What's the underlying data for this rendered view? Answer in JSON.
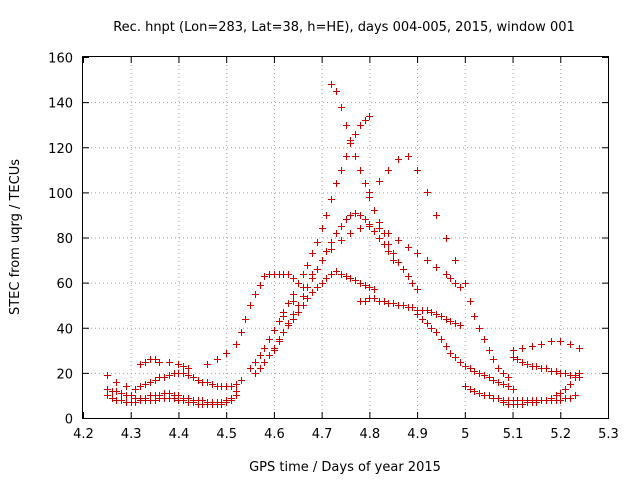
{
  "chart_data": {
    "type": "scatter",
    "title": "Rec. hnpt (Lon=283, Lat=38, h=HE), days 004-005, 2015, window 001",
    "xlabel": "GPS time / Days of year 2015",
    "ylabel": "STEC from uqrg / TECUs",
    "xlim": [
      4.2,
      5.3
    ],
    "ylim": [
      0,
      160
    ],
    "x_ticks": [
      "4.2",
      "4.3",
      "4.4",
      "4.5",
      "4.6",
      "4.7",
      "4.8",
      "4.9",
      "5",
      "5.1",
      "5.2",
      "5.3"
    ],
    "y_ticks": [
      "0",
      "20",
      "40",
      "60",
      "80",
      "100",
      "120",
      "140",
      "160"
    ],
    "grid": true,
    "marker": "plus",
    "color": "#cc0000",
    "series": [
      {
        "x": [
          4.25,
          4.26,
          4.27,
          4.28,
          4.29,
          4.3,
          4.31,
          4.32,
          4.33,
          4.34,
          4.35,
          4.36,
          4.37,
          4.38,
          4.39,
          4.4,
          4.41,
          4.42,
          4.43,
          4.44,
          4.45,
          4.46,
          4.47,
          4.48,
          4.49,
          4.5,
          4.51,
          4.52,
          4.25,
          4.26,
          4.27,
          4.28,
          4.29,
          4.3,
          4.31,
          4.32,
          4.33,
          4.34,
          4.35,
          4.36,
          4.37,
          4.38,
          4.39,
          4.4,
          4.41,
          4.42,
          4.43,
          4.44,
          4.45,
          4.46,
          4.47,
          4.48,
          4.49,
          4.5,
          4.51,
          4.52,
          4.25,
          4.27,
          4.29,
          4.31,
          4.32,
          4.33,
          4.34,
          4.35,
          4.36,
          4.37,
          4.38,
          4.39,
          4.4,
          4.41,
          4.42,
          4.43,
          4.44,
          4.45,
          4.46,
          4.47,
          4.48,
          4.49,
          4.5,
          4.51,
          4.52,
          4.53,
          4.32,
          4.33,
          4.34,
          4.35,
          4.36,
          4.38,
          4.4,
          4.41,
          4.42,
          4.46,
          4.48,
          4.5,
          4.52,
          4.53,
          4.54,
          4.55,
          4.56,
          4.57,
          4.58,
          4.59,
          4.6,
          4.61,
          4.62,
          4.63,
          4.64,
          4.65,
          4.55,
          4.56,
          4.57,
          4.58,
          4.59,
          4.6,
          4.61,
          4.62,
          4.63,
          4.64,
          4.65,
          4.66,
          4.67,
          4.68,
          4.69,
          4.7,
          4.71,
          4.72,
          4.73,
          4.74,
          4.75,
          4.76,
          4.77,
          4.78,
          4.79,
          4.8,
          4.56,
          4.57,
          4.58,
          4.59,
          4.6,
          4.61,
          4.62,
          4.63,
          4.64,
          4.65,
          4.66,
          4.67,
          4.68,
          4.69,
          4.7,
          4.71,
          4.72,
          4.73,
          4.74,
          4.75,
          4.76,
          4.77,
          4.78,
          4.79,
          4.8,
          4.81,
          4.6,
          4.61,
          4.62,
          4.63,
          4.64,
          4.65,
          4.66,
          4.67,
          4.68,
          4.69,
          4.7,
          4.71,
          4.72,
          4.73,
          4.74,
          4.75,
          4.76,
          4.77,
          4.78,
          4.79,
          4.8,
          4.81,
          4.82,
          4.83,
          4.84,
          4.85,
          4.62,
          4.64,
          4.66,
          4.68,
          4.7,
          4.72,
          4.74,
          4.76,
          4.78,
          4.8,
          4.82,
          4.84,
          4.86,
          4.88,
          4.9,
          4.92,
          4.94,
          4.96,
          4.97,
          4.98,
          4.99,
          4.72,
          4.73,
          4.74,
          4.75,
          4.76,
          4.77,
          4.78,
          4.79,
          4.8,
          4.81,
          4.82,
          4.83,
          4.84,
          4.85,
          4.86,
          4.87,
          4.88,
          4.89,
          4.9,
          4.78,
          4.79,
          4.8,
          4.81,
          4.82,
          4.83,
          4.84,
          4.85,
          4.86,
          4.87,
          4.88,
          4.89,
          4.9,
          4.91,
          4.92,
          4.93,
          4.94,
          4.95,
          4.96,
          4.97,
          4.98,
          4.99,
          4.8,
          4.82,
          4.84,
          4.86,
          4.88,
          4.9,
          4.92,
          4.94,
          4.96,
          4.98,
          5.0,
          5.01,
          5.02,
          5.03,
          5.04,
          5.05,
          5.06,
          5.07,
          5.08,
          5.09,
          4.9,
          4.91,
          4.92,
          4.93,
          4.94,
          4.95,
          4.96,
          4.97,
          4.98,
          4.99,
          5.0,
          5.01,
          5.02,
          5.03,
          5.04,
          5.05,
          5.06,
          5.07,
          5.08,
          5.09,
          5.1,
          5.0,
          5.01,
          5.02,
          5.03,
          5.04,
          5.05,
          5.06,
          5.07,
          5.08,
          5.09,
          5.1,
          5.11,
          5.12,
          5.13,
          5.14,
          5.15,
          5.16,
          5.17,
          5.18,
          5.19,
          5.2,
          5.21,
          5.22,
          5.23,
          5.08,
          5.09,
          5.1,
          5.11,
          5.12,
          5.13,
          5.14,
          5.15,
          5.16,
          5.17,
          5.18,
          5.19,
          5.2,
          5.21,
          5.22,
          5.23,
          5.24,
          5.1,
          5.11,
          5.12,
          5.13,
          5.14,
          5.15,
          5.16,
          5.17,
          5.18,
          5.19,
          5.2,
          5.21,
          5.22,
          5.23,
          5.24,
          5.1,
          5.12,
          5.14,
          5.16,
          5.18,
          5.2,
          5.22,
          5.24
        ],
        "y": [
          10,
          9,
          8,
          8,
          7,
          7,
          7,
          8,
          8,
          8,
          8,
          9,
          9,
          9,
          9,
          8,
          8,
          7,
          7,
          6,
          6,
          6,
          6,
          6,
          6,
          7,
          8,
          10,
          13,
          12,
          12,
          11,
          10,
          10,
          9,
          9,
          9,
          10,
          10,
          10,
          11,
          11,
          10,
          10,
          9,
          9,
          8,
          8,
          8,
          7,
          7,
          7,
          7,
          8,
          9,
          12,
          19,
          16,
          14,
          13,
          14,
          15,
          16,
          17,
          18,
          18,
          19,
          20,
          20,
          20,
          19,
          18,
          17,
          16,
          16,
          15,
          14,
          14,
          14,
          14,
          15,
          17,
          24,
          25,
          26,
          26,
          25,
          25,
          24,
          23,
          22,
          24,
          26,
          29,
          33,
          38,
          44,
          50,
          55,
          59,
          63,
          64,
          64,
          64,
          64,
          64,
          62,
          60,
          22,
          25,
          28,
          31,
          35,
          39,
          43,
          47,
          51,
          55,
          60,
          64,
          68,
          73,
          78,
          84,
          90,
          97,
          104,
          110,
          116,
          122,
          126,
          130,
          132,
          134,
          20,
          22,
          25,
          28,
          31,
          35,
          38,
          41,
          44,
          47,
          50,
          53,
          56,
          58,
          60,
          62,
          64,
          65,
          64,
          63,
          62,
          61,
          60,
          59,
          58,
          57,
          30,
          34,
          38,
          42,
          46,
          50,
          54,
          58,
          62,
          66,
          70,
          74,
          78,
          82,
          85,
          88,
          90,
          91,
          90,
          88,
          86,
          83,
          80,
          77,
          74,
          70,
          45,
          52,
          58,
          64,
          70,
          75,
          79,
          82,
          84,
          85,
          84,
          82,
          79,
          76,
          73,
          70,
          67,
          64,
          62,
          60,
          58,
          148,
          145,
          138,
          130,
          123,
          116,
          110,
          104,
          98,
          92,
          87,
          82,
          77,
          73,
          69,
          66,
          63,
          60,
          57,
          52,
          52,
          53,
          53,
          52,
          52,
          51,
          51,
          50,
          50,
          49,
          49,
          48,
          48,
          48,
          47,
          46,
          45,
          44,
          43,
          42,
          41,
          100,
          105,
          110,
          115,
          116,
          110,
          100,
          90,
          80,
          70,
          60,
          52,
          45,
          40,
          35,
          30,
          26,
          22,
          20,
          18,
          46,
          44,
          42,
          40,
          38,
          35,
          32,
          29,
          27,
          25,
          23,
          22,
          21,
          20,
          19,
          18,
          17,
          16,
          15,
          14,
          13,
          14,
          13,
          12,
          11,
          10,
          10,
          9,
          9,
          8,
          8,
          8,
          8,
          8,
          8,
          8,
          8,
          8,
          8,
          8,
          8,
          8,
          9,
          9,
          10,
          7,
          6,
          6,
          6,
          6,
          7,
          7,
          7,
          8,
          8,
          9,
          10,
          11,
          13,
          15,
          18,
          20,
          27,
          26,
          25,
          24,
          23,
          23,
          22,
          22,
          21,
          21,
          20,
          20,
          19,
          19,
          18,
          30,
          31,
          32,
          33,
          34,
          34,
          33,
          31
        ]
      }
    ]
  }
}
